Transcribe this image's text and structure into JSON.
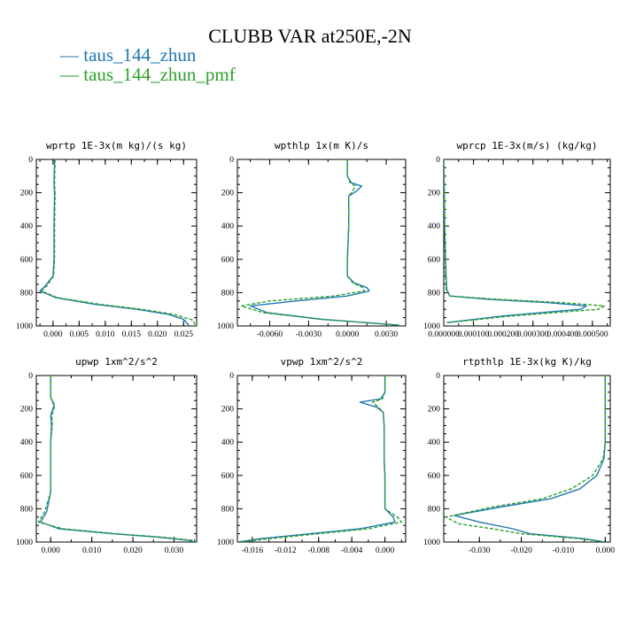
{
  "figure": {
    "title": "CLUBB VAR at250E,-2N",
    "legend": [
      {
        "label": "— taus_144_zhun",
        "color": "#1f77b4"
      },
      {
        "label": "— taus_144_zhun_pmf",
        "color": "#2ca02c"
      }
    ]
  },
  "chart_data": [
    {
      "type": "line",
      "title": "wprtp  1E-3x(m kg)/(s kg)",
      "xlim": [
        -0.0032,
        0.0275
      ],
      "ylim": [
        0,
        1000
      ],
      "y_reversed": true,
      "xticks": [
        0.0,
        0.005,
        0.01,
        0.015,
        0.02,
        0.025
      ],
      "xtick_labels": [
        "0.000",
        "0.005",
        "0.010",
        "0.015",
        "0.020",
        "0.025"
      ],
      "yticks": [
        0,
        200,
        400,
        600,
        800,
        1000
      ],
      "ytick_labels": [
        "0",
        "200",
        "400",
        "600",
        "800",
        "1000"
      ],
      "series": [
        {
          "name": "taus_144_zhun",
          "color": "#1f77b4",
          "dashed": false,
          "x": [
            0.0003,
            0.0002,
            0.0003,
            0.0002,
            0.0002,
            0.0,
            -0.0015,
            -0.0025,
            0.0005,
            0.008,
            0.016,
            0.022,
            0.025,
            0.026
          ],
          "y": [
            0,
            150,
            200,
            400,
            600,
            700,
            760,
            790,
            830,
            870,
            900,
            930,
            960,
            995
          ]
        },
        {
          "name": "taus_144_zhun_pmf",
          "color": "#2ca02c",
          "dashed": true,
          "x": [
            0.0004,
            0.0003,
            0.0004,
            0.0003,
            0.0003,
            0.0001,
            -0.0012,
            -0.0022,
            0.0008,
            0.009,
            0.017,
            0.023,
            0.0268,
            0.0272
          ],
          "y": [
            0,
            150,
            200,
            400,
            600,
            700,
            760,
            790,
            830,
            870,
            900,
            930,
            965,
            995
          ]
        }
      ]
    },
    {
      "type": "line",
      "title": "wpthlp  1x(m K)/s",
      "xlim": [
        -0.0085,
        0.0045
      ],
      "ylim": [
        0,
        1000
      ],
      "y_reversed": true,
      "xticks": [
        -0.006,
        -0.003,
        0.0,
        0.003
      ],
      "xtick_labels": [
        "-0.0060",
        "-0.0030",
        "0.0000",
        "0.0030"
      ],
      "yticks": [
        0,
        200,
        400,
        600,
        800,
        1000
      ],
      "ytick_labels": [
        "0",
        "200",
        "400",
        "600",
        "800",
        "1000"
      ],
      "series": [
        {
          "name": "taus_144_zhun",
          "color": "#1f77b4",
          "dashed": false,
          "x": [
            0.0,
            0.0,
            0.0003,
            0.0011,
            0.0007,
            0.0001,
            0.0001,
            0.0,
            0.0,
            0.0005,
            0.0015,
            0.0017,
            0.0,
            -0.004,
            -0.0075,
            -0.0062,
            -0.002,
            0.004
          ],
          "y": [
            0,
            100,
            140,
            160,
            190,
            220,
            400,
            600,
            700,
            740,
            770,
            790,
            820,
            850,
            880,
            920,
            960,
            995
          ]
        },
        {
          "name": "taus_144_zhun_pmf",
          "color": "#2ca02c",
          "dashed": true,
          "x": [
            0.0,
            0.0,
            0.0002,
            0.0006,
            0.0004,
            0.0001,
            0.0001,
            0.0,
            0.0,
            0.0004,
            0.0012,
            0.0013,
            -0.001,
            -0.006,
            -0.0082,
            -0.0065,
            -0.002,
            0.004
          ],
          "y": [
            0,
            100,
            140,
            160,
            190,
            220,
            400,
            600,
            700,
            740,
            770,
            790,
            820,
            850,
            880,
            920,
            960,
            995
          ]
        }
      ]
    },
    {
      "type": "line",
      "title": "wprcp  1E-3x(m/s) (kg/kg)",
      "xlim": [
        0,
        0.00056
      ],
      "ylim": [
        0,
        1000
      ],
      "y_reversed": true,
      "xticks": [
        0.0,
        0.0001,
        0.0002,
        0.0003,
        0.0004,
        0.0005
      ],
      "xtick_labels": [
        "0.000000",
        "0.000100",
        "0.000200",
        "0.000300",
        "0.000400",
        "0.000500"
      ],
      "yticks": [
        0,
        200,
        400,
        600,
        800,
        1000
      ],
      "ytick_labels": [
        "0",
        "200",
        "400",
        "600",
        "800",
        "1000"
      ],
      "series": [
        {
          "name": "taus_144_zhun",
          "color": "#1f77b4",
          "dashed": false,
          "x": [
            0.0,
            2e-06,
            3e-06,
            6e-06,
            8e-06,
            1e-05,
            2e-05,
            0.00015,
            0.00035,
            0.00048,
            0.00046,
            0.0002,
            1e-05
          ],
          "y": [
            0,
            200,
            400,
            600,
            700,
            780,
            820,
            840,
            860,
            880,
            900,
            940,
            980
          ]
        },
        {
          "name": "taus_144_zhun_pmf",
          "color": "#2ca02c",
          "dashed": true,
          "x": [
            0.0,
            2e-06,
            3e-06,
            5e-06,
            6e-06,
            8e-06,
            2e-05,
            0.00018,
            0.0004,
            0.00054,
            0.00052,
            0.00023,
            1.5e-05
          ],
          "y": [
            0,
            200,
            400,
            600,
            700,
            780,
            820,
            840,
            860,
            880,
            900,
            940,
            980
          ]
        }
      ]
    },
    {
      "type": "line",
      "title": "upwp  1xm^2/s^2",
      "xlim": [
        -0.0035,
        0.0355
      ],
      "ylim": [
        0,
        1000
      ],
      "y_reversed": true,
      "xticks": [
        0.0,
        0.01,
        0.02,
        0.03
      ],
      "xtick_labels": [
        "0.000",
        "0.010",
        "0.020",
        "0.030"
      ],
      "yticks": [
        0,
        200,
        400,
        600,
        800,
        1000
      ],
      "ytick_labels": [
        "0",
        "200",
        "400",
        "600",
        "800",
        "1000"
      ],
      "series": [
        {
          "name": "taus_144_zhun",
          "color": "#1f77b4",
          "dashed": false,
          "x": [
            0.0,
            0.0,
            0.0008,
            0.0,
            0.0002,
            0.0,
            0.0,
            -0.001,
            -0.0025,
            0.002,
            0.015,
            0.026,
            0.0335,
            0.035
          ],
          "y": [
            0,
            130,
            180,
            240,
            300,
            400,
            700,
            820,
            880,
            920,
            950,
            970,
            990,
            1000
          ]
        },
        {
          "name": "taus_144_zhun_pmf",
          "color": "#2ca02c",
          "dashed": true,
          "x": [
            0.0,
            0.0,
            0.001,
            0.0003,
            0.0004,
            0.0,
            0.0,
            -0.0015,
            -0.003,
            0.003,
            0.016,
            0.027,
            0.0345,
            0.0355
          ],
          "y": [
            0,
            130,
            180,
            240,
            300,
            400,
            700,
            820,
            880,
            920,
            950,
            970,
            990,
            1000
          ]
        }
      ]
    },
    {
      "type": "line",
      "title": "vpwp  1xm^2/s^2",
      "xlim": [
        -0.0178,
        0.0025
      ],
      "ylim": [
        0,
        1000
      ],
      "y_reversed": true,
      "xticks": [
        -0.016,
        -0.012,
        -0.008,
        -0.004,
        0.0
      ],
      "xtick_labels": [
        "-0.016",
        "-0.012",
        "-0.008",
        "-0.004",
        "0.000"
      ],
      "yticks": [
        0,
        200,
        400,
        600,
        800,
        1000
      ],
      "ytick_labels": [
        "0",
        "200",
        "400",
        "600",
        "800",
        "1000"
      ],
      "series": [
        {
          "name": "taus_144_zhun",
          "color": "#1f77b4",
          "dashed": false,
          "x": [
            0.0,
            0.0,
            -0.0005,
            -0.003,
            -0.001,
            -0.0002,
            -0.0001,
            -0.0001,
            0.0,
            0.0,
            0.0,
            0.001,
            0.0012,
            -0.003,
            -0.009,
            -0.015,
            -0.0178
          ],
          "y": [
            0,
            100,
            140,
            160,
            190,
            220,
            300,
            500,
            600,
            700,
            800,
            850,
            880,
            920,
            950,
            980,
            1000
          ]
        },
        {
          "name": "taus_144_zhun_pmf",
          "color": "#2ca02c",
          "dashed": true,
          "x": [
            0.0,
            0.0,
            -0.0003,
            -0.0015,
            -0.0008,
            -0.0002,
            -0.0001,
            -0.0001,
            0.0,
            0.0,
            0.0,
            0.0015,
            0.002,
            -0.002,
            -0.008,
            -0.014,
            -0.0175
          ],
          "y": [
            0,
            100,
            140,
            160,
            190,
            220,
            300,
            500,
            600,
            700,
            800,
            850,
            880,
            920,
            950,
            980,
            1000
          ]
        }
      ]
    },
    {
      "type": "line",
      "title": "rtpthlp  1E-3x(kg K)/kg",
      "xlim": [
        -0.0385,
        0.0012
      ],
      "ylim": [
        0,
        1000
      ],
      "y_reversed": true,
      "xticks": [
        -0.03,
        -0.02,
        -0.01,
        0.0
      ],
      "xtick_labels": [
        "-0.030",
        "-0.020",
        "-0.010",
        "0.000"
      ],
      "yticks": [
        0,
        200,
        400,
        600,
        800,
        1000
      ],
      "ytick_labels": [
        "0",
        "200",
        "400",
        "600",
        "800",
        "1000"
      ],
      "series": [
        {
          "name": "taus_144_zhun",
          "color": "#1f77b4",
          "dashed": false,
          "x": [
            0.0,
            0.0,
            0.0,
            -0.0003,
            -0.002,
            -0.006,
            -0.013,
            -0.025,
            -0.036,
            -0.03,
            -0.022,
            -0.018,
            -0.005,
            0.0
          ],
          "y": [
            0,
            200,
            400,
            500,
            600,
            680,
            740,
            790,
            840,
            880,
            920,
            950,
            980,
            1000
          ]
        },
        {
          "name": "taus_144_zhun_pmf",
          "color": "#2ca02c",
          "dashed": true,
          "x": [
            0.0,
            0.0,
            0.0,
            -0.0005,
            -0.003,
            -0.008,
            -0.015,
            -0.027,
            -0.038,
            -0.035,
            -0.027,
            -0.02,
            -0.006,
            0.0
          ],
          "y": [
            0,
            200,
            400,
            500,
            600,
            680,
            740,
            790,
            850,
            890,
            920,
            950,
            980,
            1000
          ]
        }
      ]
    }
  ]
}
